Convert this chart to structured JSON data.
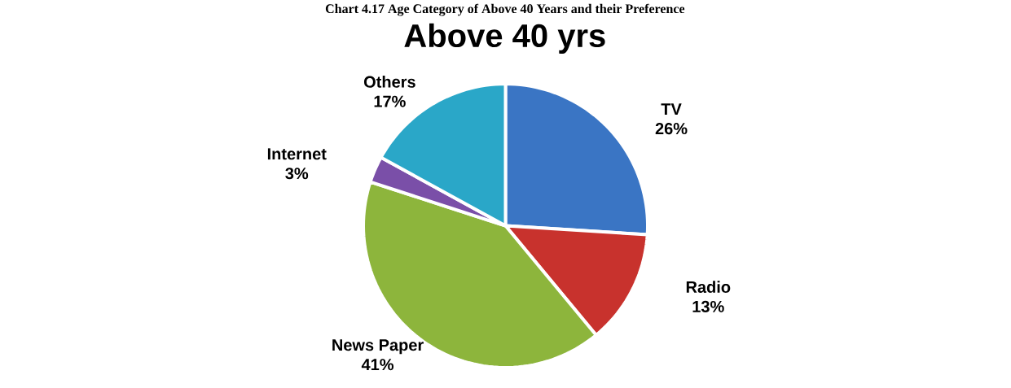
{
  "chart_data": {
    "type": "pie",
    "title": "Chart 4.17 Age Category of Above 40 Years and their Preference",
    "subtitle": "Above 40 yrs",
    "categories": [
      "TV",
      "Radio",
      "News Paper",
      "Internet",
      "Others"
    ],
    "values": [
      26,
      13,
      41,
      3,
      17
    ],
    "value_labels": [
      "26%",
      "13%",
      "41%",
      "3%",
      "17%"
    ],
    "colors": [
      "#3a75c4",
      "#c8322d",
      "#8db53c",
      "#7a4fa8",
      "#2aa7c8"
    ]
  }
}
